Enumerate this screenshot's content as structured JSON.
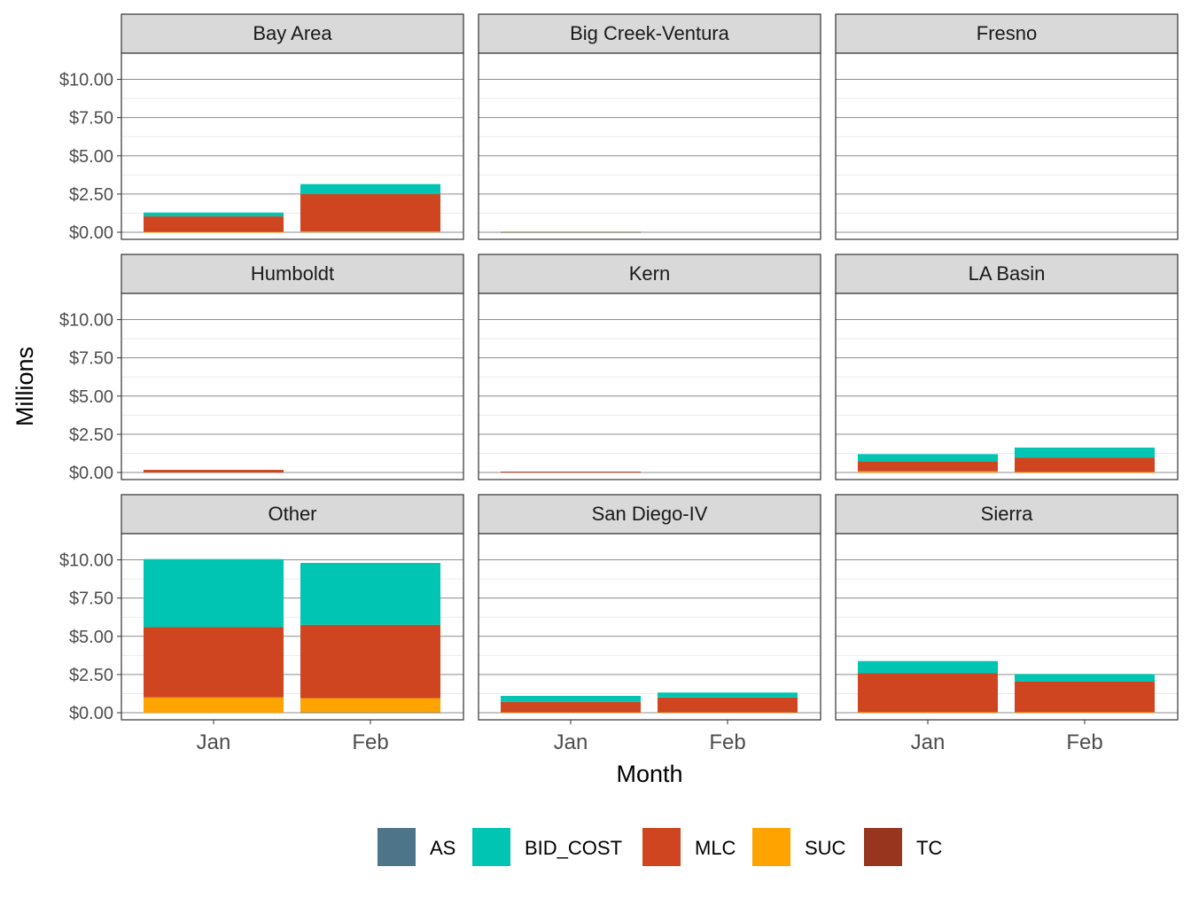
{
  "chart_data": {
    "type": "bar",
    "stacked": true,
    "faceted": true,
    "xlabel": "Month",
    "ylabel": "Millions",
    "ylim": [
      0,
      11.25
    ],
    "y_ticks": [
      0,
      2.5,
      5,
      7.5,
      10
    ],
    "y_tick_labels": [
      "$0.00",
      "$2.50",
      "$5.00",
      "$7.50",
      "$10.00"
    ],
    "categories": [
      "Jan",
      "Feb"
    ],
    "grid": true,
    "legend_position": "bottom",
    "legend": [
      {
        "key": "AS",
        "label": "AS",
        "color": "#4e7489"
      },
      {
        "key": "BID_COST",
        "label": "BID_COST",
        "color": "#00c5b2"
      },
      {
        "key": "MLC",
        "label": "MLC",
        "color": "#cf4520"
      },
      {
        "key": "SUC",
        "label": "SUC",
        "color": "#ffa300"
      },
      {
        "key": "TC",
        "label": "TC",
        "color": "#97351f"
      }
    ],
    "stack_order": [
      "AS",
      "TC",
      "SUC",
      "MLC",
      "BID_COST"
    ],
    "panels": [
      {
        "title": "Bay Area",
        "values": {
          "AS": [
            0,
            0
          ],
          "TC": [
            0,
            0
          ],
          "SUC": [
            0.02,
            0.05
          ],
          "MLC": [
            1.02,
            2.45
          ],
          "BID_COST": [
            0.25,
            0.65
          ]
        }
      },
      {
        "title": "Big Creek-Ventura",
        "values": {
          "AS": [
            0,
            0
          ],
          "TC": [
            0,
            0
          ],
          "SUC": [
            0,
            0
          ],
          "MLC": [
            0.01,
            0
          ],
          "BID_COST": [
            0.03,
            0
          ]
        }
      },
      {
        "title": "Fresno",
        "values": {
          "AS": [
            0,
            0
          ],
          "TC": [
            0,
            0
          ],
          "SUC": [
            0,
            0
          ],
          "MLC": [
            0,
            0
          ],
          "BID_COST": [
            0,
            0
          ]
        }
      },
      {
        "title": "Humboldt",
        "values": {
          "AS": [
            0,
            0
          ],
          "TC": [
            0,
            0
          ],
          "SUC": [
            0,
            0
          ],
          "MLC": [
            0.17,
            0
          ],
          "BID_COST": [
            0,
            0
          ]
        }
      },
      {
        "title": "Kern",
        "values": {
          "AS": [
            0,
            0
          ],
          "TC": [
            0,
            0
          ],
          "SUC": [
            0,
            0
          ],
          "MLC": [
            0.06,
            0
          ],
          "BID_COST": [
            0,
            0
          ]
        }
      },
      {
        "title": "LA Basin",
        "values": {
          "AS": [
            0,
            0
          ],
          "TC": [
            0,
            0
          ],
          "SUC": [
            0.08,
            0.03
          ],
          "MLC": [
            0.65,
            0.95
          ],
          "BID_COST": [
            0.47,
            0.65
          ]
        }
      },
      {
        "title": "Other",
        "values": {
          "AS": [
            0,
            0.02
          ],
          "TC": [
            0,
            0
          ],
          "SUC": [
            1.0,
            0.93
          ],
          "MLC": [
            4.6,
            4.8
          ],
          "BID_COST": [
            4.45,
            4.05
          ]
        }
      },
      {
        "title": "San Diego-IV",
        "values": {
          "AS": [
            0,
            0
          ],
          "TC": [
            0,
            0
          ],
          "SUC": [
            0.02,
            0.02
          ],
          "MLC": [
            0.68,
            0.98
          ],
          "BID_COST": [
            0.4,
            0.32
          ]
        }
      },
      {
        "title": "Sierra",
        "values": {
          "AS": [
            0,
            0
          ],
          "TC": [
            0,
            0
          ],
          "SUC": [
            0.03,
            0.03
          ],
          "MLC": [
            2.55,
            2.0
          ],
          "BID_COST": [
            0.8,
            0.5
          ]
        }
      }
    ]
  }
}
